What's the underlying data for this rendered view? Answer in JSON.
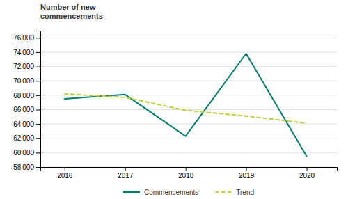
{
  "chart_data": {
    "type": "line",
    "title": "Number of new\ncommencements",
    "x": [
      2016,
      2017,
      2018,
      2019,
      2020
    ],
    "series": [
      {
        "name": "Commencements",
        "color": "#007D6E",
        "line_style": "solid",
        "values": [
          67500,
          68100,
          62300,
          73800,
          59500
        ]
      },
      {
        "name": "Trend",
        "color": "#BFCF3D",
        "line_style": "dashed",
        "values": [
          68200,
          67700,
          65900,
          65100,
          64100
        ]
      }
    ],
    "xlim": [
      2015.6,
      2020.5
    ],
    "xticks": [
      2016,
      2017,
      2018,
      2019,
      2020
    ],
    "ylim": [
      58000,
      77000
    ],
    "yticks": [
      {
        "value": 58000,
        "label": "58 000"
      },
      {
        "value": 60000,
        "label": "60 000"
      },
      {
        "value": 62000,
        "label": "62 000"
      },
      {
        "value": 64000,
        "label": "64 000"
      },
      {
        "value": 66000,
        "label": "66 000"
      },
      {
        "value": 68000,
        "label": "68 000"
      },
      {
        "value": 70000,
        "label": "70 000"
      },
      {
        "value": 72000,
        "label": "72 000"
      },
      {
        "value": 74000,
        "label": "74 000"
      },
      {
        "value": 76000,
        "label": "76 000"
      }
    ],
    "grid": true,
    "legend": "bottom"
  }
}
